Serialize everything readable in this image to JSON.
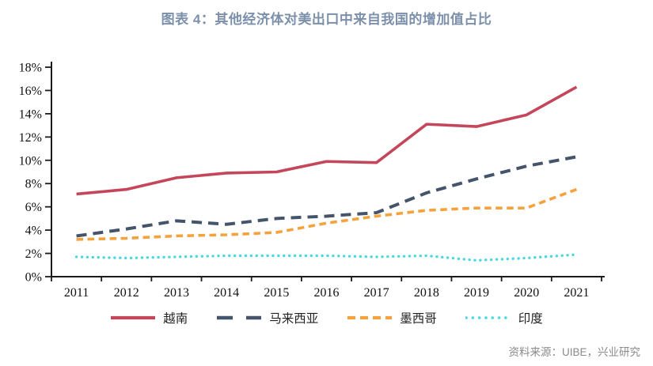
{
  "title": "图表 4：其他经济体对美出口中来自我国的增加值占比",
  "source": "资料来源：UIBE，兴业研究",
  "colors": {
    "title": "#7C90AB",
    "axis": "#1a1a1a",
    "source_text": "#8a8a8a"
  },
  "chart_data": {
    "type": "line",
    "x": [
      2011,
      2012,
      2013,
      2014,
      2015,
      2016,
      2017,
      2018,
      2019,
      2020,
      2021
    ],
    "series": [
      {
        "name": "越南",
        "color": "#C4465A",
        "style": "solid",
        "values": [
          7.1,
          7.5,
          8.5,
          8.9,
          9.0,
          9.9,
          9.8,
          13.1,
          12.9,
          13.9,
          16.3
        ]
      },
      {
        "name": "马来西亚",
        "color": "#44546A",
        "style": "dashed",
        "values": [
          3.5,
          4.1,
          4.8,
          4.5,
          5.0,
          5.2,
          5.5,
          7.2,
          8.4,
          9.5,
          10.3
        ]
      },
      {
        "name": "墨西哥",
        "color": "#F5A23C",
        "style": "dashed-short",
        "values": [
          3.2,
          3.3,
          3.5,
          3.6,
          3.8,
          4.6,
          5.2,
          5.7,
          5.9,
          5.9,
          7.5
        ]
      },
      {
        "name": "印度",
        "color": "#4BD8DF",
        "style": "dotted",
        "values": [
          1.7,
          1.6,
          1.7,
          1.8,
          1.8,
          1.8,
          1.7,
          1.8,
          1.4,
          1.6,
          1.9
        ]
      }
    ],
    "title": "其他经济体对美出口中来自我国的增加值占比",
    "xlabel": "",
    "ylabel": "",
    "ylim": [
      0,
      18
    ],
    "ytick_step": 2,
    "ytick_format": "percent",
    "grid": false,
    "legend_position": "bottom"
  }
}
